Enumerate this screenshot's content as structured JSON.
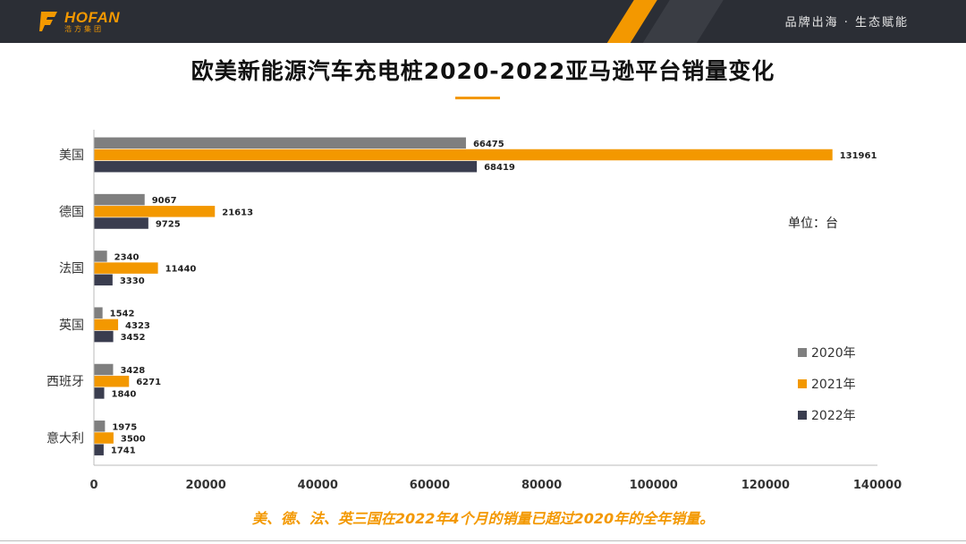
{
  "header": {
    "logo_text": "HOFAN",
    "logo_subtext": "浩方集团",
    "slogan": "品牌出海 · 生态赋能"
  },
  "title": "欧美新能源汽车充电桩2020-2022亚马逊平台销量变化",
  "unit_label": "单位：台",
  "caption": "美、德、法、英三国在2022年4个月的销量已超过2020年的全年销量。",
  "colors": {
    "accent": "#f39800",
    "series_2020": "#7f7f7f",
    "series_2021": "#f39800",
    "series_2022": "#3a3d4f"
  },
  "chart_data": {
    "type": "bar",
    "orientation": "horizontal",
    "categories": [
      "美国",
      "德国",
      "法国",
      "英国",
      "西班牙",
      "意大利"
    ],
    "series": [
      {
        "name": "2020年",
        "color": "#7f7f7f",
        "values": [
          66475,
          9067,
          2340,
          1542,
          3428,
          1975
        ]
      },
      {
        "name": "2021年",
        "color": "#f39800",
        "values": [
          131961,
          21613,
          11440,
          4323,
          6271,
          3500
        ]
      },
      {
        "name": "2022年",
        "color": "#3a3d4f",
        "values": [
          68419,
          9725,
          3330,
          3452,
          1840,
          1741
        ]
      }
    ],
    "xlim": [
      0,
      140000
    ],
    "xticks": [
      0,
      20000,
      40000,
      60000,
      80000,
      100000,
      120000,
      140000
    ],
    "data_labels": true,
    "grid": false,
    "legend": "right"
  }
}
